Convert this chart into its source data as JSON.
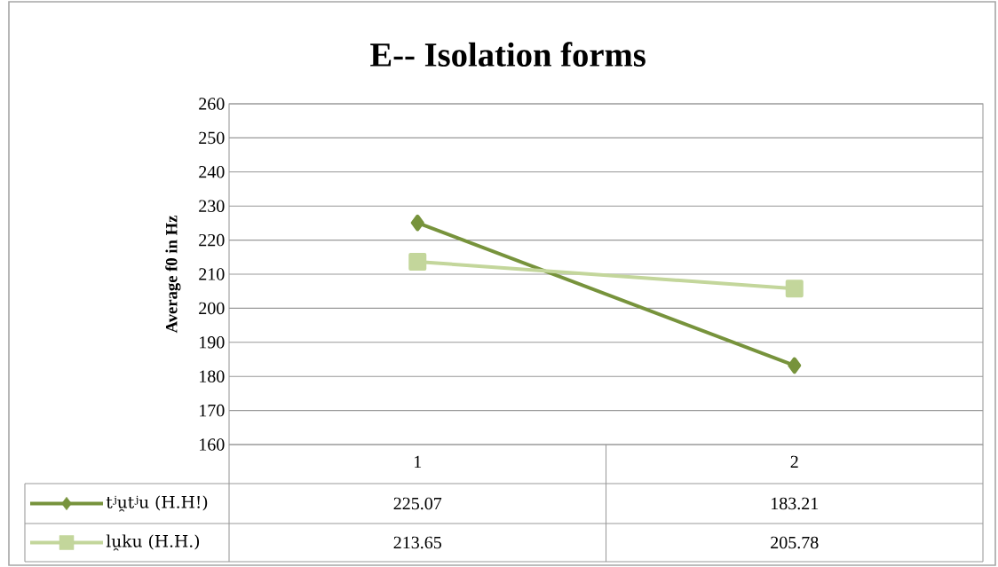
{
  "chart_data": {
    "type": "line",
    "title": "E-- Isolation forms",
    "ylabel": "Average f0 in Hz",
    "categories": [
      "1",
      "2"
    ],
    "series": [
      {
        "name": "tʲu̯tʲu (H.H!)",
        "color": "#77933c",
        "values": [
          225.07,
          183.21
        ],
        "value_labels": [
          "225.07",
          "183.21"
        ],
        "marker": "diamond"
      },
      {
        "name": "lu̯ku (H.H.)",
        "color": "#c3d69b",
        "values": [
          213.65,
          205.78
        ],
        "value_labels": [
          "213.65",
          "205.78"
        ],
        "marker": "square"
      }
    ],
    "ylim": [
      160,
      260
    ],
    "yticks": [
      160,
      170,
      180,
      190,
      200,
      210,
      220,
      230,
      240,
      250,
      260
    ],
    "grid": "y",
    "legend": "bottom"
  }
}
